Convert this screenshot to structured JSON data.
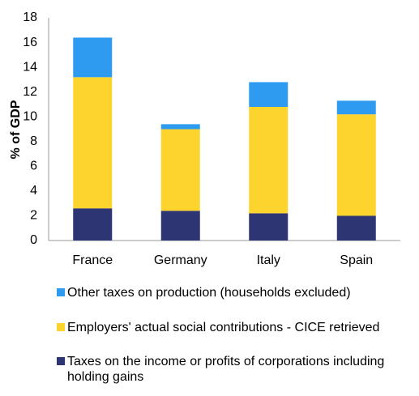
{
  "chart_data": {
    "type": "stacked_bar",
    "y_label": "% of GDP",
    "categories": [
      "France",
      "Germany",
      "Italy",
      "Spain"
    ],
    "series": [
      {
        "name": "Other taxes on production (households excluded)",
        "color": "#2f9bf0",
        "values": [
          3.2,
          0.4,
          2.0,
          1.1
        ]
      },
      {
        "name": "Employers' actual social contributions - CICE retrieved",
        "color": "#fdd42d",
        "values": [
          10.6,
          6.6,
          8.6,
          8.2
        ]
      },
      {
        "name": "Taxes on the income or profits of corporations including holding gains",
        "color": "#2e3573",
        "values": [
          2.6,
          2.4,
          2.2,
          2.0
        ]
      }
    ],
    "ylim": [
      0,
      18
    ],
    "yticks": [
      0,
      2,
      4,
      6,
      8,
      10,
      12,
      14,
      16,
      18
    ],
    "grid": false
  }
}
